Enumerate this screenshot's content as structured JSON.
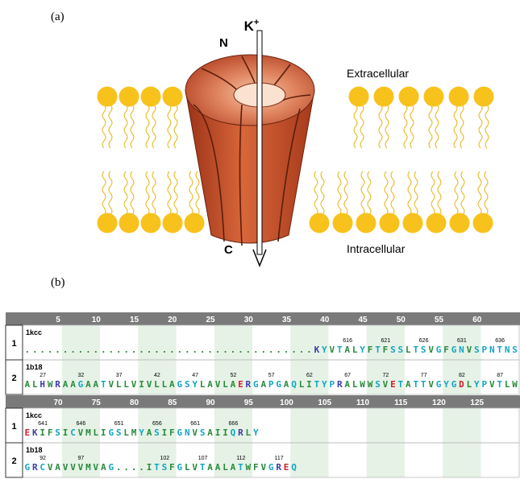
{
  "panel_a": {
    "label": "(a)",
    "ion": "K",
    "ion_charge": "+",
    "n_terminus": "N",
    "c_terminus": "C",
    "extracellular": "Extracellular",
    "intracellular": "Intracellular"
  },
  "panel_b": {
    "label": "(b)",
    "blocks": [
      {
        "ruler": [
          5,
          10,
          15,
          20,
          25,
          30,
          35,
          40,
          45,
          50,
          55,
          60
        ],
        "rows": [
          {
            "index": "1",
            "name": "1kcc",
            "sequence": "......................................KYVTALYFTFSSLTSVGFGNVSPNTNS",
            "numbers": [
              616,
              621,
              626,
              631,
              636
            ]
          },
          {
            "index": "2",
            "name": "1b18",
            "sequence": "ALHWRAAGAATVLLVIVLLAGSYLAVLAERGAPGAQLITYPRALWWSVETATTVGYGDLYPVTLW",
            "numbers": [
              27,
              32,
              37,
              42,
              47,
              52,
              57,
              62,
              67,
              72,
              77,
              82,
              87
            ]
          }
        ]
      },
      {
        "ruler": [
          70,
          75,
          80,
          85,
          90,
          95,
          100,
          105,
          110,
          115,
          120,
          125
        ],
        "rows": [
          {
            "index": "1",
            "name": "1kcc",
            "sequence": "EKIFSICVMLIGSLMYASIFGNVSAIIQRLY",
            "numbers": [
              641,
              646,
              651,
              656,
              661,
              666
            ]
          },
          {
            "index": "2",
            "name": "1b18",
            "sequence": "GRCVAVVVMVAG....ITSFGLVTAALATWFVGREQ",
            "numbers": [
              92,
              97,
              102,
              107,
              112,
              117
            ]
          }
        ]
      }
    ]
  }
}
